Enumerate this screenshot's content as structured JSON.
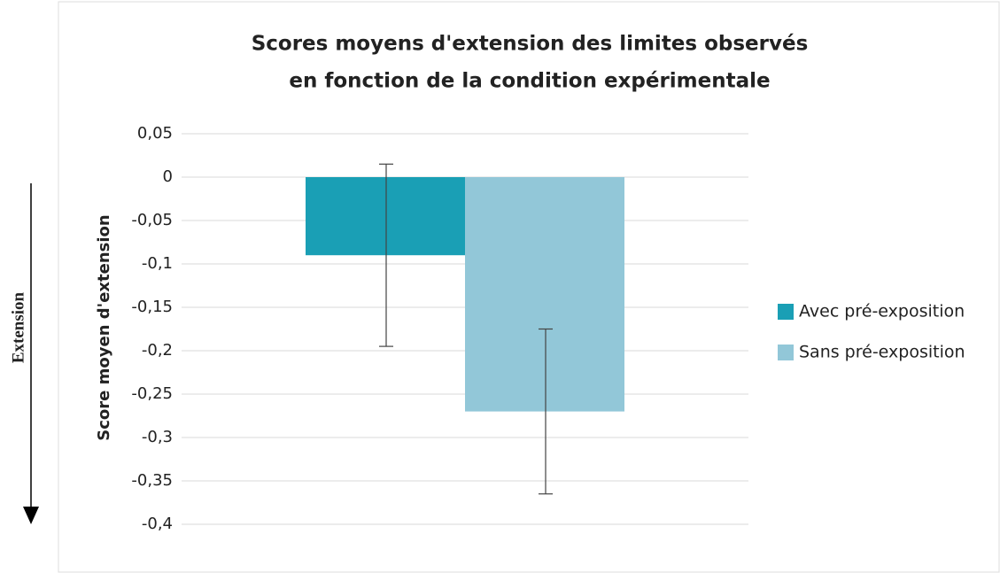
{
  "chart_data": {
    "type": "bar",
    "title": [
      "Scores moyens d'extension des limites observés",
      "en fonction de la condition expérimentale"
    ],
    "y_label": "Score moyen d'extension",
    "annotation": "Extension",
    "categories": [
      null
    ],
    "series": [
      {
        "name": "Avec pré-exposition",
        "color": "#1a9fb5",
        "values": [
          -0.09
        ],
        "errors": [
          0.105
        ]
      },
      {
        "name": "Sans pré-exposition",
        "color": "#92c7d8",
        "values": [
          -0.27
        ],
        "errors": [
          0.095
        ]
      }
    ],
    "ylim": [
      -0.4,
      0.05
    ],
    "yticks": [
      {
        "value": 0.05,
        "label": "0,05"
      },
      0,
      {
        "value": -0.05,
        "label": "-0,05"
      },
      {
        "value": -0.1,
        "label": "-0,1"
      },
      {
        "value": -0.15,
        "label": "-0,15"
      },
      {
        "value": -0.2,
        "label": "-0,2"
      },
      {
        "value": -0.25,
        "label": "-0,25"
      },
      {
        "value": -0.3,
        "label": "-0,3"
      },
      {
        "value": -0.35,
        "label": "-0,35"
      },
      {
        "value": -0.4,
        "label": "-0,4"
      }
    ],
    "grid": true,
    "legend": "right"
  }
}
